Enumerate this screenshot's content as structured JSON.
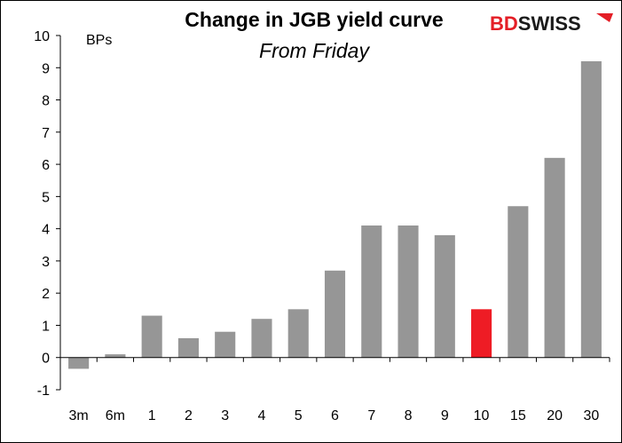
{
  "chart_data": {
    "type": "bar",
    "title": "Change in JGB yield curve",
    "subtitle": "From Friday",
    "unit_label": "BPs",
    "categories": [
      "3m",
      "6m",
      "1",
      "2",
      "3",
      "4",
      "5",
      "6",
      "7",
      "8",
      "9",
      "10",
      "15",
      "20",
      "30"
    ],
    "values": [
      -0.35,
      0.1,
      1.3,
      0.6,
      0.8,
      1.2,
      1.5,
      2.7,
      4.1,
      4.1,
      3.8,
      1.5,
      4.7,
      6.2,
      9.2
    ],
    "highlight_index": 11,
    "ylim": [
      -1,
      10
    ],
    "yticks": [
      "-1",
      "0",
      "1",
      "2",
      "3",
      "4",
      "5",
      "6",
      "7",
      "8",
      "9",
      "10"
    ],
    "grid": false,
    "legend": "none",
    "colors": {
      "bar": "#969696",
      "highlight": "#ee1c25",
      "axis": "#000000"
    }
  },
  "logo": {
    "prefix": "BD",
    "suffix": "SWISS",
    "prefix_color": "#e41e26",
    "suffix_color": "#1a1a1a",
    "mark_color": "#e41e26"
  }
}
